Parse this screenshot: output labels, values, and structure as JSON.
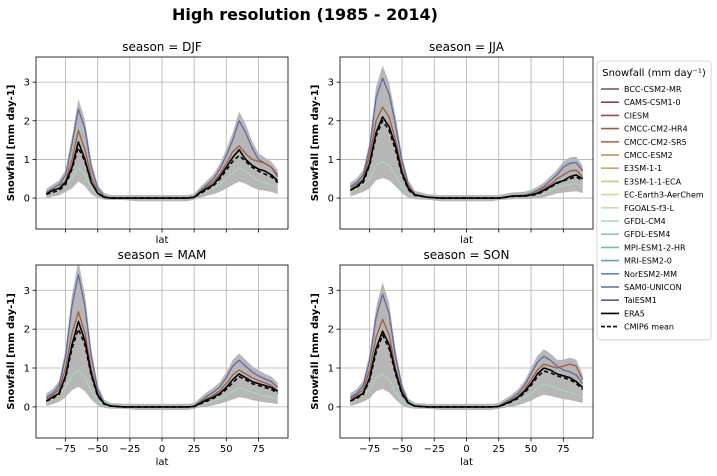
{
  "figure": {
    "title": "High resolution (1985 - 2014)"
  },
  "colors": {
    "spread_band": "#b3b3b3",
    "grid": "#b0b0b0",
    "era5": "#000000",
    "cmip6_mean": "#000000"
  },
  "chart_data": {
    "type": "line",
    "xlabel": "lat",
    "ylabel": "Snowfall [mm day-1]",
    "xlim": [
      -98,
      98
    ],
    "ylim": [
      -0.8,
      3.65
    ],
    "xticks": [
      -75,
      -50,
      -25,
      0,
      25,
      50,
      75
    ],
    "yticks": [
      0,
      1,
      2,
      3
    ],
    "grid": true,
    "legend": {
      "title": "Snowfall (mm day⁻¹)",
      "placement": "right",
      "entries": [
        {
          "name": "BCC-CSM2-MR",
          "color": "#7b4a63",
          "style": "solid"
        },
        {
          "name": "CAMS-CSM1-0",
          "color": "#8e3e55",
          "style": "solid"
        },
        {
          "name": "CIESM",
          "color": "#9a4a4a",
          "style": "solid"
        },
        {
          "name": "CMCC-CM2-HR4",
          "color": "#a55a3e",
          "style": "solid"
        },
        {
          "name": "CMCC-CM2-SR5",
          "color": "#b0713f",
          "style": "solid"
        },
        {
          "name": "CMCC-ESM2",
          "color": "#bb8a48",
          "style": "solid"
        },
        {
          "name": "E3SM-1-1",
          "color": "#c9a865",
          "style": "solid"
        },
        {
          "name": "E3SM-1-1-ECA",
          "color": "#d3c382",
          "style": "solid"
        },
        {
          "name": "EC-Earth3-AerChem",
          "color": "#d6d69c",
          "style": "solid"
        },
        {
          "name": "FGOALS-f3-L",
          "color": "#c2dfa8",
          "style": "solid"
        },
        {
          "name": "GFDL-CM4",
          "color": "#a6d8b0",
          "style": "solid"
        },
        {
          "name": "GFDL-ESM4",
          "color": "#88cdb8",
          "style": "solid"
        },
        {
          "name": "MPI-ESM1-2-HR",
          "color": "#6fbcbe",
          "style": "solid"
        },
        {
          "name": "MRI-ESM2-0",
          "color": "#5ea4c0",
          "style": "solid"
        },
        {
          "name": "NorESM2-MM",
          "color": "#5a88b8",
          "style": "solid"
        },
        {
          "name": "SAM0-UNICON",
          "color": "#5f6aa8",
          "style": "solid"
        },
        {
          "name": "TaiESM1",
          "color": "#6b5490",
          "style": "solid"
        },
        {
          "name": "ERA5",
          "color": "#000000",
          "style": "solid"
        },
        {
          "name": "CMIP6 mean",
          "color": "#000000",
          "style": "dashed"
        }
      ]
    },
    "panels": [
      {
        "title": "season = DJF",
        "x": [
          -90,
          -85,
          -80,
          -75,
          -70,
          -65,
          -60,
          -55,
          -50,
          -45,
          -40,
          -30,
          -20,
          -10,
          0,
          10,
          20,
          25,
          30,
          35,
          40,
          45,
          50,
          55,
          60,
          65,
          70,
          75,
          80,
          85,
          90
        ],
        "series": [
          {
            "name": "ERA5",
            "values": [
              0.1,
              0.2,
              0.25,
              0.4,
              0.8,
              1.45,
              1.0,
              0.4,
              0.12,
              0.02,
              0.0,
              0.0,
              0.0,
              0.0,
              0.0,
              0.0,
              0.0,
              0.02,
              0.15,
              0.25,
              0.35,
              0.55,
              0.8,
              1.05,
              1.25,
              1.0,
              0.85,
              0.75,
              0.7,
              0.6,
              0.45
            ]
          },
          {
            "name": "CMIP6 mean",
            "values": [
              0.1,
              0.15,
              0.2,
              0.35,
              0.75,
              1.3,
              0.95,
              0.4,
              0.12,
              0.02,
              0.0,
              0.0,
              0.0,
              0.0,
              0.0,
              0.0,
              0.0,
              0.02,
              0.12,
              0.22,
              0.32,
              0.5,
              0.72,
              0.95,
              1.1,
              0.95,
              0.8,
              0.7,
              0.62,
              0.55,
              0.4
            ]
          },
          {
            "name": "SAM0-UNICON",
            "values": [
              0.15,
              0.25,
              0.35,
              0.6,
              1.4,
              2.3,
              1.8,
              0.8,
              0.25,
              0.05,
              0.0,
              0.0,
              0.0,
              0.0,
              0.0,
              0.0,
              0.0,
              0.03,
              0.2,
              0.35,
              0.5,
              0.75,
              1.1,
              1.5,
              2.0,
              1.7,
              1.3,
              1.0,
              0.9,
              0.8,
              0.6
            ]
          },
          {
            "name": "CMCC-CM2-HR4",
            "values": [
              0.12,
              0.2,
              0.3,
              0.45,
              1.0,
              1.75,
              1.25,
              0.55,
              0.15,
              0.03,
              0.0,
              0.0,
              0.0,
              0.0,
              0.0,
              0.0,
              0.0,
              0.02,
              0.18,
              0.3,
              0.42,
              0.62,
              0.9,
              1.2,
              1.35,
              1.15,
              1.0,
              0.95,
              0.9,
              0.8,
              0.55
            ]
          },
          {
            "name": "GFDL-CM4",
            "values": [
              0.08,
              0.2,
              0.3,
              0.35,
              0.5,
              0.8,
              0.6,
              0.25,
              0.08,
              0.01,
              0.0,
              0.0,
              0.0,
              0.0,
              0.0,
              0.0,
              0.0,
              0.01,
              0.1,
              0.18,
              0.25,
              0.35,
              0.5,
              0.65,
              0.8,
              0.7,
              0.55,
              0.45,
              0.4,
              0.35,
              0.25
            ]
          }
        ]
      },
      {
        "title": "season = JJA",
        "x": [
          -90,
          -85,
          -80,
          -75,
          -70,
          -65,
          -60,
          -55,
          -50,
          -45,
          -40,
          -30,
          -20,
          -10,
          0,
          10,
          20,
          25,
          30,
          35,
          40,
          45,
          50,
          55,
          60,
          65,
          70,
          75,
          80,
          85,
          90
        ],
        "series": [
          {
            "name": "ERA5",
            "values": [
              0.2,
              0.3,
              0.45,
              0.9,
              1.7,
              2.1,
              1.85,
              1.35,
              0.65,
              0.25,
              0.08,
              0.02,
              0.0,
              0.0,
              0.0,
              0.0,
              0.0,
              0.0,
              0.02,
              0.05,
              0.05,
              0.05,
              0.08,
              0.12,
              0.2,
              0.3,
              0.4,
              0.45,
              0.55,
              0.6,
              0.5
            ]
          },
          {
            "name": "CMIP6 mean",
            "values": [
              0.2,
              0.28,
              0.4,
              0.85,
              1.6,
              2.0,
              1.75,
              1.25,
              0.6,
              0.22,
              0.07,
              0.02,
              0.0,
              0.0,
              0.0,
              0.0,
              0.0,
              0.0,
              0.02,
              0.04,
              0.05,
              0.05,
              0.07,
              0.1,
              0.18,
              0.28,
              0.38,
              0.45,
              0.5,
              0.55,
              0.45
            ]
          },
          {
            "name": "SAM0-UNICON",
            "values": [
              0.3,
              0.4,
              0.6,
              1.3,
              2.6,
              3.1,
              2.7,
              1.9,
              0.95,
              0.35,
              0.1,
              0.02,
              0.0,
              0.0,
              0.0,
              0.0,
              0.0,
              0.0,
              0.03,
              0.06,
              0.07,
              0.08,
              0.12,
              0.2,
              0.3,
              0.45,
              0.6,
              0.8,
              0.9,
              0.92,
              0.7
            ]
          },
          {
            "name": "CMCC-CM2-HR4",
            "values": [
              0.25,
              0.35,
              0.5,
              1.1,
              2.0,
              2.35,
              2.1,
              1.5,
              0.75,
              0.3,
              0.1,
              0.02,
              0.0,
              0.0,
              0.0,
              0.0,
              0.0,
              0.0,
              0.02,
              0.05,
              0.06,
              0.06,
              0.1,
              0.15,
              0.25,
              0.35,
              0.5,
              0.6,
              0.7,
              0.72,
              0.55
            ]
          },
          {
            "name": "GFDL-CM4",
            "values": [
              0.15,
              0.25,
              0.35,
              0.5,
              0.85,
              0.95,
              0.85,
              0.6,
              0.3,
              0.1,
              0.03,
              0.01,
              0.0,
              0.0,
              0.0,
              0.0,
              0.0,
              0.0,
              0.01,
              0.03,
              0.04,
              0.04,
              0.05,
              0.08,
              0.12,
              0.2,
              0.28,
              0.32,
              0.35,
              0.38,
              0.3
            ]
          }
        ]
      },
      {
        "title": "season = MAM",
        "x": [
          -90,
          -85,
          -80,
          -75,
          -70,
          -65,
          -60,
          -55,
          -50,
          -45,
          -40,
          -30,
          -20,
          -10,
          0,
          10,
          20,
          25,
          30,
          35,
          40,
          45,
          50,
          55,
          60,
          65,
          70,
          75,
          80,
          85,
          90
        ],
        "series": [
          {
            "name": "ERA5",
            "values": [
              0.15,
              0.25,
              0.35,
              0.8,
              1.6,
              2.2,
              1.7,
              0.85,
              0.3,
              0.08,
              0.02,
              0.0,
              0.0,
              0.0,
              0.0,
              0.0,
              0.0,
              0.01,
              0.1,
              0.18,
              0.25,
              0.35,
              0.5,
              0.7,
              0.85,
              0.75,
              0.65,
              0.6,
              0.55,
              0.5,
              0.4
            ]
          },
          {
            "name": "CMIP6 mean",
            "values": [
              0.15,
              0.22,
              0.32,
              0.75,
              1.5,
              2.0,
              1.6,
              0.8,
              0.28,
              0.07,
              0.02,
              0.0,
              0.0,
              0.0,
              0.0,
              0.0,
              0.0,
              0.01,
              0.08,
              0.15,
              0.22,
              0.32,
              0.45,
              0.62,
              0.78,
              0.7,
              0.6,
              0.55,
              0.5,
              0.45,
              0.35
            ]
          },
          {
            "name": "SAM0-UNICON",
            "values": [
              0.25,
              0.35,
              0.55,
              1.3,
              2.6,
              3.4,
              2.6,
              1.3,
              0.45,
              0.1,
              0.02,
              0.0,
              0.0,
              0.0,
              0.0,
              0.0,
              0.0,
              0.02,
              0.15,
              0.28,
              0.38,
              0.52,
              0.75,
              1.05,
              1.2,
              1.05,
              0.9,
              0.8,
              0.72,
              0.65,
              0.5
            ]
          },
          {
            "name": "CMCC-CM2-HR4",
            "values": [
              0.2,
              0.3,
              0.45,
              1.0,
              1.9,
              2.45,
              1.9,
              0.95,
              0.35,
              0.08,
              0.02,
              0.0,
              0.0,
              0.0,
              0.0,
              0.0,
              0.0,
              0.01,
              0.12,
              0.22,
              0.3,
              0.42,
              0.6,
              0.82,
              0.95,
              0.85,
              0.75,
              0.68,
              0.62,
              0.55,
              0.42
            ]
          },
          {
            "name": "GFDL-CM4",
            "values": [
              0.12,
              0.2,
              0.3,
              0.5,
              0.8,
              0.95,
              0.75,
              0.4,
              0.15,
              0.04,
              0.01,
              0.0,
              0.0,
              0.0,
              0.0,
              0.0,
              0.0,
              0.01,
              0.06,
              0.1,
              0.15,
              0.22,
              0.3,
              0.4,
              0.5,
              0.45,
              0.38,
              0.32,
              0.28,
              0.25,
              0.2
            ]
          }
        ]
      },
      {
        "title": "season = SON",
        "x": [
          -90,
          -85,
          -80,
          -75,
          -70,
          -65,
          -60,
          -55,
          -50,
          -45,
          -40,
          -30,
          -20,
          -10,
          0,
          10,
          20,
          25,
          30,
          35,
          40,
          45,
          50,
          55,
          60,
          65,
          70,
          75,
          80,
          85,
          90
        ],
        "series": [
          {
            "name": "ERA5",
            "values": [
              0.15,
              0.25,
              0.35,
              0.75,
              1.5,
              1.95,
              1.6,
              0.9,
              0.35,
              0.1,
              0.02,
              0.0,
              0.0,
              0.0,
              0.0,
              0.0,
              0.0,
              0.01,
              0.08,
              0.15,
              0.25,
              0.4,
              0.6,
              0.85,
              1.0,
              0.95,
              0.85,
              0.8,
              0.75,
              0.65,
              0.5
            ]
          },
          {
            "name": "CMIP6 mean",
            "values": [
              0.15,
              0.22,
              0.32,
              0.7,
              1.4,
              1.85,
              1.5,
              0.85,
              0.32,
              0.09,
              0.02,
              0.0,
              0.0,
              0.0,
              0.0,
              0.0,
              0.0,
              0.01,
              0.07,
              0.13,
              0.22,
              0.36,
              0.55,
              0.78,
              0.92,
              0.88,
              0.8,
              0.75,
              0.7,
              0.6,
              0.45
            ]
          },
          {
            "name": "SAM0-UNICON",
            "values": [
              0.25,
              0.35,
              0.55,
              1.2,
              2.3,
              2.9,
              2.4,
              1.3,
              0.5,
              0.12,
              0.02,
              0.0,
              0.0,
              0.0,
              0.0,
              0.0,
              0.0,
              0.02,
              0.12,
              0.22,
              0.35,
              0.55,
              0.85,
              1.15,
              1.3,
              1.2,
              1.05,
              0.95,
              0.9,
              0.82,
              0.6
            ]
          },
          {
            "name": "CMCC-CM2-HR4",
            "values": [
              0.2,
              0.3,
              0.45,
              0.95,
              1.8,
              2.25,
              1.85,
              1.0,
              0.4,
              0.1,
              0.02,
              0.0,
              0.0,
              0.0,
              0.0,
              0.0,
              0.0,
              0.01,
              0.1,
              0.18,
              0.28,
              0.45,
              0.7,
              0.95,
              1.1,
              1.05,
              1.0,
              1.05,
              1.1,
              1.05,
              0.7
            ]
          },
          {
            "name": "GFDL-CM4",
            "values": [
              0.12,
              0.2,
              0.3,
              0.45,
              0.75,
              0.85,
              0.7,
              0.4,
              0.15,
              0.04,
              0.01,
              0.0,
              0.0,
              0.0,
              0.0,
              0.0,
              0.0,
              0.01,
              0.05,
              0.1,
              0.15,
              0.25,
              0.35,
              0.5,
              0.6,
              0.55,
              0.48,
              0.42,
              0.38,
              0.32,
              0.25
            ]
          }
        ]
      }
    ]
  }
}
